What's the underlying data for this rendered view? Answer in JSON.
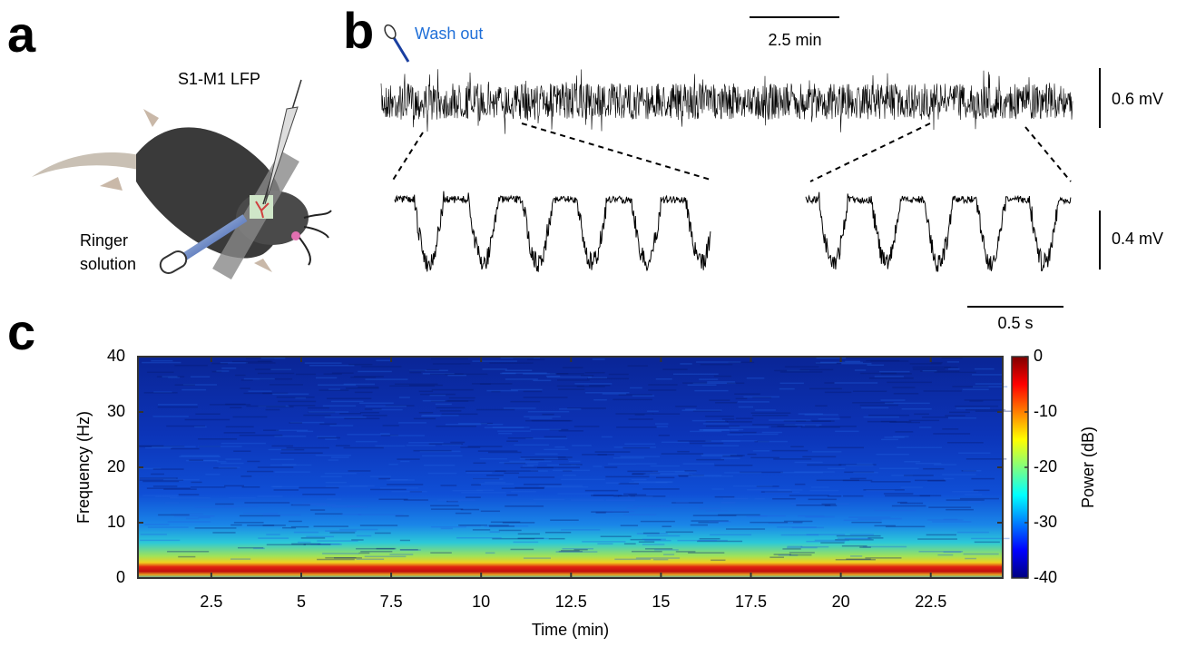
{
  "panel_labels": [
    "a",
    "b",
    "c"
  ],
  "panel_a": {
    "recording": "S1-M1 LFP",
    "perfusion": [
      "Ringer",
      "solution"
    ]
  },
  "panel_b": {
    "event": "Wash out",
    "time_scale_top": "2.5 min",
    "voltage_scale_top": "0.6 mV",
    "voltage_scale_bottom": "0.4 mV",
    "time_scale_bottom": "0.5 s"
  },
  "chart_data": {
    "type": "heatmap",
    "xlabel": "Time (min)",
    "ylabel": "Frequency (Hz)",
    "xlim": [
      0.46,
      24.5
    ],
    "xticks": [
      2.5,
      5,
      7.5,
      10,
      12.5,
      15,
      17.5,
      20,
      22.5
    ],
    "ylim": [
      0,
      40
    ],
    "yticks": [
      0,
      10,
      20,
      30,
      40
    ],
    "colorbar_label": "Power (dB)",
    "clim": [
      -40,
      0
    ],
    "cticks": [
      0,
      -10,
      -20,
      -30,
      -40
    ],
    "colormap": "jet"
  }
}
